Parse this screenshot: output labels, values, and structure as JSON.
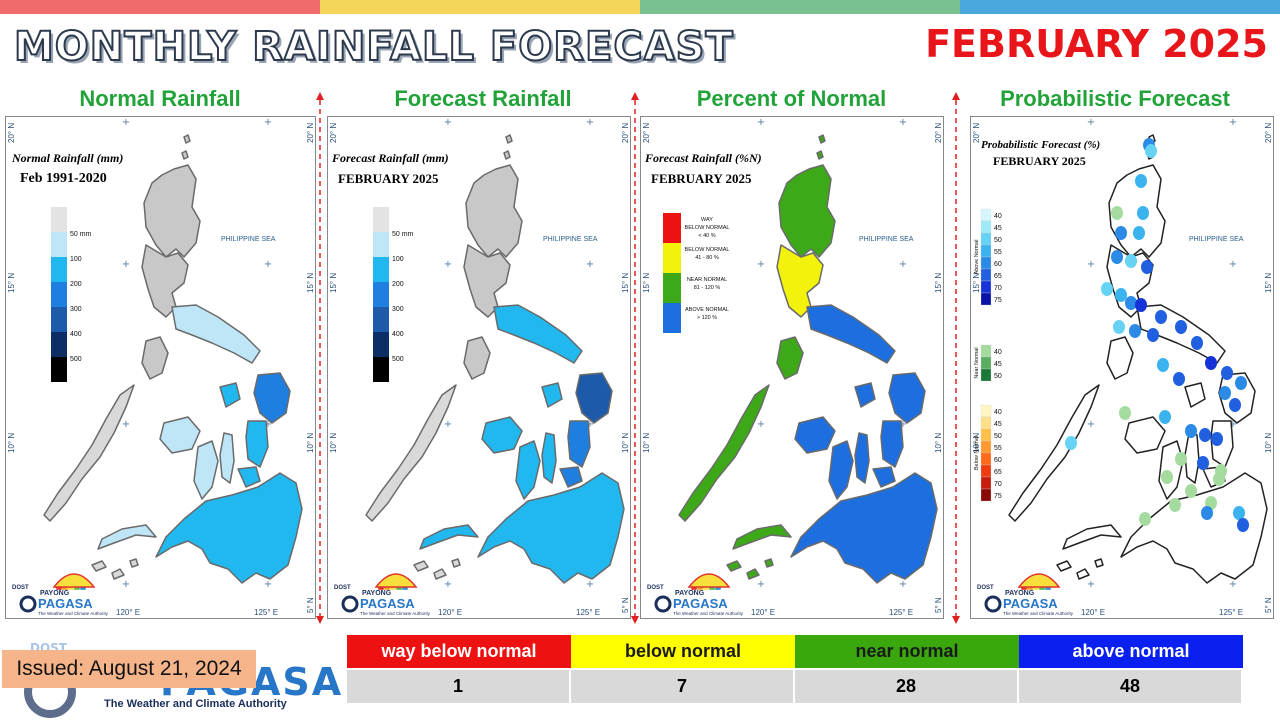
{
  "header": {
    "title": "MONTHLY RAINFALL FORECAST",
    "month": "FEBRUARY 2025",
    "bar_colors": [
      "#f06b6b",
      "#f4d65a",
      "#78c08e",
      "#4ba8df"
    ]
  },
  "panels": [
    {
      "title": "Normal Rainfall",
      "map_title": "Normal Rainfall (mm)",
      "map_subtitle": "Feb 1991-2020"
    },
    {
      "title": "Forecast Rainfall",
      "map_title": "Forecast Rainfall (mm)",
      "map_subtitle": "FEBRUARY 2025"
    },
    {
      "title": "Percent of Normal",
      "map_title": "Forecast Rainfall (%N)",
      "map_subtitle": "FEBRUARY 2025"
    },
    {
      "title": "Probabilistic Forecast",
      "map_title": "Probabilistic Forecast (%)",
      "map_subtitle": "FEBRUARY 2025"
    }
  ],
  "map_labels": {
    "sea": "PHILIPPINE SEA",
    "lat_20": "20° N",
    "lat_15": "15° N",
    "lat_10": "10° N",
    "lat_5": "5° N",
    "lon_120": "120° E",
    "lon_125": "125° E",
    "dost": "DOST",
    "payong": "PAYONG",
    "pagasa": "PAGASA",
    "authority": "The Weather and Climate Authority"
  },
  "rain_legend": {
    "labels": [
      "50 mm",
      "100",
      "200",
      "300",
      "400",
      "500"
    ],
    "colors": [
      "#e3e3e3",
      "#bfe6f7",
      "#20b8ee",
      "#1e7fe0",
      "#1d5aaa",
      "#0d2d66",
      "#000000"
    ]
  },
  "pct_legend": [
    {
      "line1": "WAY",
      "line2": "BELOW NORMAL",
      "line3": "< 40 %",
      "color": "#ee1111"
    },
    {
      "line1": "BELOW NORMAL",
      "line2": "41 - 80 %",
      "line3": "",
      "color": "#f2f20a"
    },
    {
      "line1": "NEAR NORMAL",
      "line2": "81 - 120 %",
      "line3": "",
      "color": "#3ea918"
    },
    {
      "line1": "ABOVE NORMAL",
      "line2": "> 120 %",
      "line3": "",
      "color": "#1d6fe0"
    }
  ],
  "prob_legend": {
    "above_title": "Above Normal",
    "near_title": "Near Normal",
    "below_title": "Below Normal",
    "above": [
      "40",
      "45",
      "50",
      "55",
      "60",
      "65",
      "70",
      "75"
    ],
    "near": [
      "40",
      "45",
      "50"
    ],
    "below": [
      "40",
      "45",
      "50",
      "55",
      "60",
      "65",
      "70",
      "75"
    ],
    "above_colors": [
      "#d6f6ff",
      "#9eeaf9",
      "#66d3f4",
      "#3bb3ee",
      "#2a8ae6",
      "#1f5fe0",
      "#1533d6",
      "#0a12a8"
    ],
    "near_colors": [
      "#a6dba0",
      "#5aae61",
      "#1b7837"
    ],
    "below_colors": [
      "#fff6c2",
      "#ffe08a",
      "#ffc04a",
      "#ff9a30",
      "#ff6a1a",
      "#ee3b10",
      "#c81c0c",
      "#8a0a06"
    ]
  },
  "summary": {
    "categories": [
      {
        "label": "way below normal",
        "count": "1",
        "color": "#ee1111",
        "text_color": "#ffffff"
      },
      {
        "label": "below normal",
        "count": "7",
        "color": "#ffff00",
        "text_color": "#1a1a1a"
      },
      {
        "label": "near normal",
        "count": "28",
        "color": "#3aa80c",
        "text_color": "#1a1a1a"
      },
      {
        "label": "above normal",
        "count": "48",
        "color": "#0a20f0",
        "text_color": "#ffffff"
      }
    ]
  },
  "issued": "Issued: August 21, 2024",
  "footer": {
    "dost": "DOST",
    "pagasa": "PAGASA",
    "tagline": "The Weather and Climate Authority"
  }
}
